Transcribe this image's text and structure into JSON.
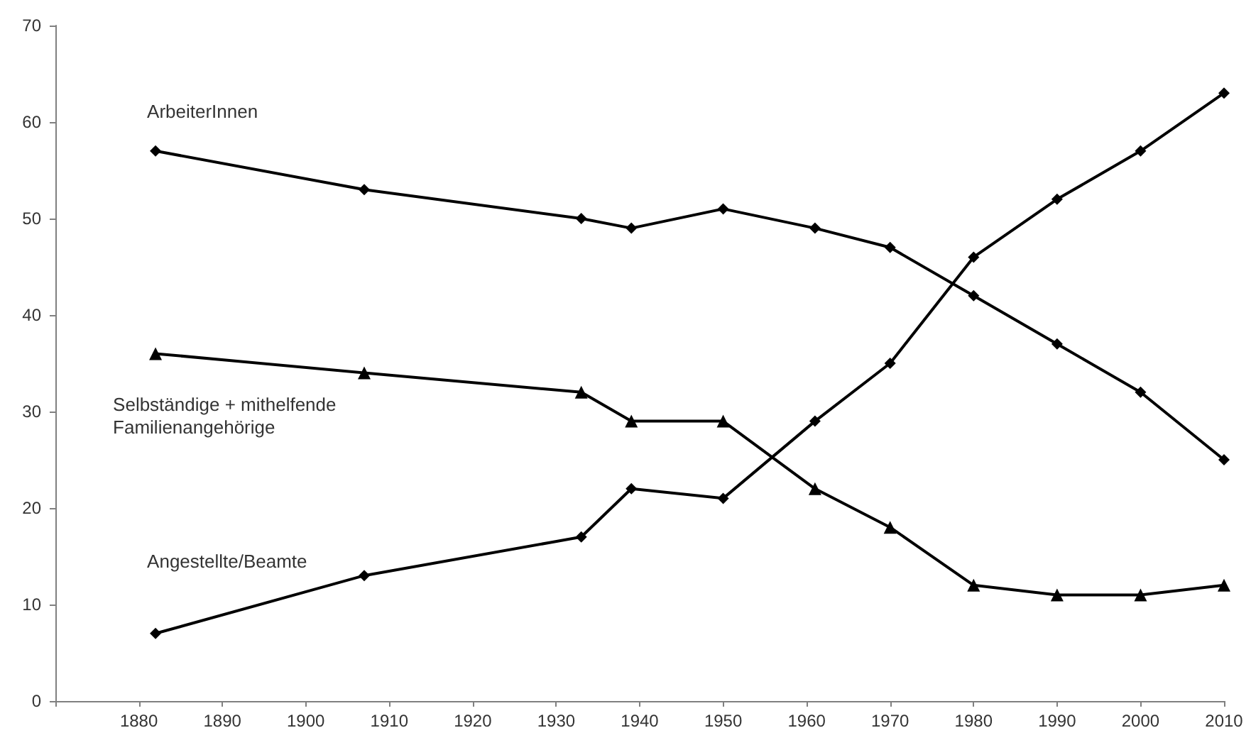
{
  "chart_data": {
    "type": "line",
    "x": [
      1882,
      1907,
      1933,
      1939,
      1950,
      1961,
      1970,
      1980,
      1990,
      2000,
      2010
    ],
    "series": [
      {
        "name": "ArbeiterInnen",
        "color": "#000000",
        "marker": "diamond",
        "values": [
          57,
          53,
          50,
          49,
          51,
          49,
          47,
          42,
          37,
          32,
          25
        ]
      },
      {
        "name": "Selbständige + mithelfende Familienangehörige",
        "color": "#000000",
        "marker": "triangle",
        "values": [
          36,
          34,
          32,
          29,
          29,
          22,
          18,
          12,
          11,
          11,
          12
        ]
      },
      {
        "name": "Angestellte/Beamte",
        "color": "#000000",
        "marker": "diamond",
        "values": [
          7,
          13,
          17,
          22,
          21,
          29,
          35,
          46,
          52,
          57,
          63
        ]
      }
    ],
    "xlim": [
      1870,
      2010
    ],
    "xticks": [
      {
        "value": 1870,
        "label": null
      },
      1880,
      1890,
      1900,
      1910,
      1920,
      1930,
      1940,
      1950,
      1960,
      1970,
      1980,
      1990,
      2000,
      2010
    ],
    "ylim": [
      0,
      70
    ],
    "yticks": [
      0,
      10,
      20,
      30,
      40,
      50,
      60,
      70
    ],
    "grid": false,
    "legend": false,
    "line_style": "solid"
  }
}
